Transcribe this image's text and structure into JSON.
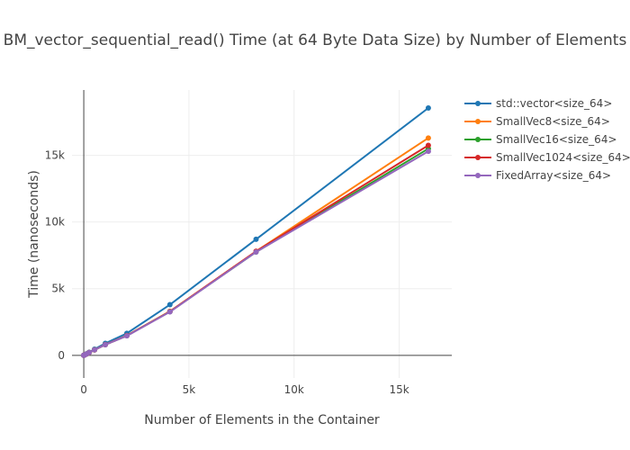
{
  "chart_data": {
    "type": "line",
    "title": "BM_vector_sequential_read() Time (at 64 Byte Data Size) by Number of Elements",
    "xlabel": "Number of Elements in the Container",
    "ylabel": "Time (nanoseconds)",
    "x": [
      1,
      2,
      4,
      8,
      16,
      32,
      64,
      128,
      256,
      512,
      1024,
      2048,
      4096,
      8192,
      16384
    ],
    "xlim": [
      -560,
      17500
    ],
    "ylim": [
      -1700,
      19900
    ],
    "x_ticks": [
      0,
      5000,
      10000,
      15000
    ],
    "x_tick_labels": [
      "0",
      "5k",
      "10k",
      "15k"
    ],
    "y_ticks": [
      0,
      5000,
      10000,
      15000
    ],
    "y_tick_labels": [
      "0",
      "5k",
      "10k",
      "15k"
    ],
    "grid": true,
    "legend_position": "right",
    "series": [
      {
        "name": "std::vector<size_64>",
        "color": "#1f77b4",
        "values": [
          2,
          3,
          5,
          9,
          16,
          30,
          60,
          115,
          230,
          460,
          900,
          1650,
          3800,
          8700,
          18550
        ]
      },
      {
        "name": "SmallVec8<size_64>",
        "color": "#ff7f0e",
        "values": [
          2,
          3,
          5,
          8,
          14,
          27,
          52,
          100,
          205,
          410,
          810,
          1480,
          3300,
          7800,
          16300
        ]
      },
      {
        "name": "SmallVec16<size_64>",
        "color": "#2ca02c",
        "values": [
          2,
          3,
          5,
          8,
          14,
          27,
          52,
          100,
          205,
          410,
          800,
          1470,
          3280,
          7750,
          15500
        ]
      },
      {
        "name": "SmallVec1024<size_64>",
        "color": "#d62728",
        "values": [
          2,
          3,
          5,
          8,
          14,
          27,
          52,
          100,
          205,
          410,
          800,
          1470,
          3280,
          7800,
          15750
        ]
      },
      {
        "name": "FixedArray<size_64>",
        "color": "#9467bd",
        "values": [
          2,
          3,
          5,
          8,
          14,
          27,
          52,
          100,
          205,
          410,
          800,
          1460,
          3260,
          7750,
          15300
        ]
      }
    ]
  }
}
